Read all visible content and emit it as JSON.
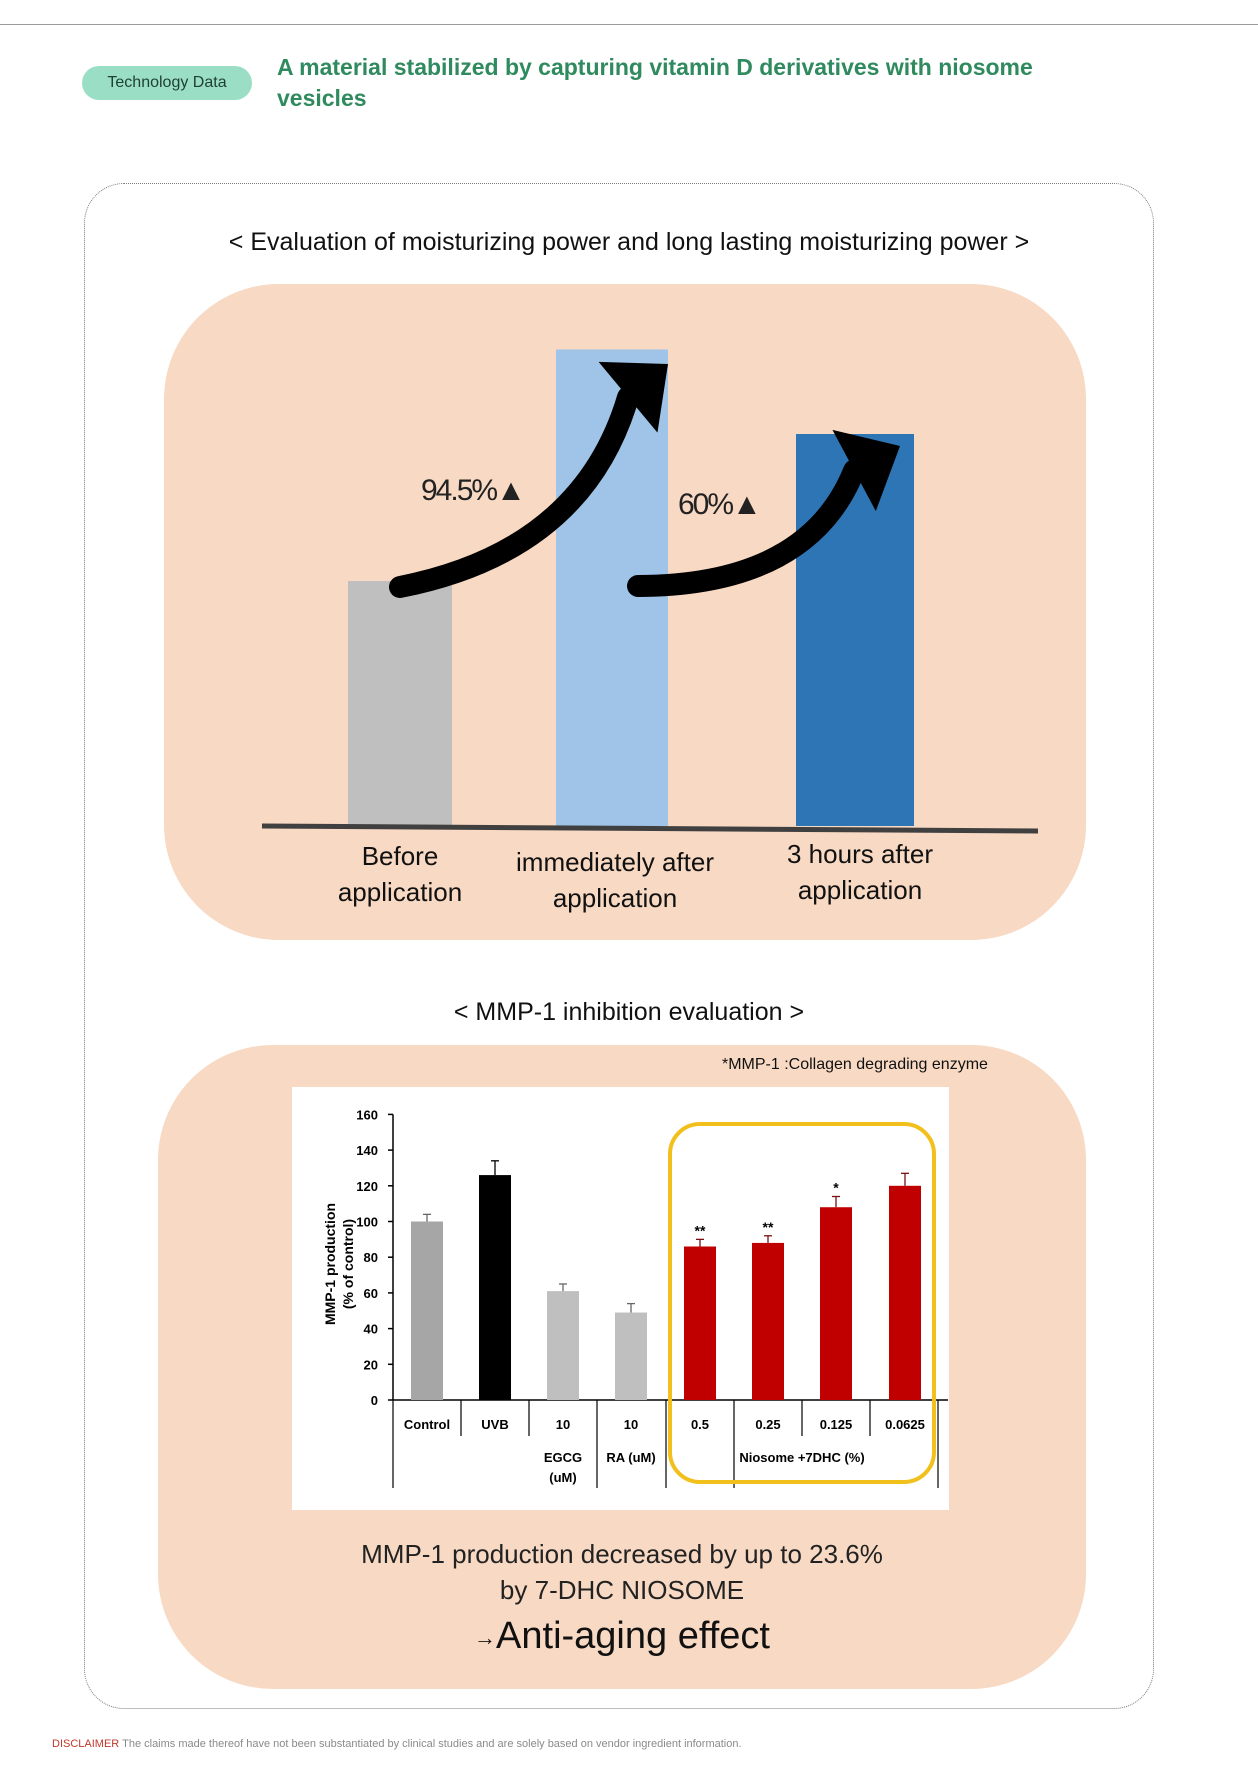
{
  "header": {
    "badge": "Technology Data",
    "title": "A material stabilized by capturing vitamin D derivatives with niosome vesicles"
  },
  "section1": {
    "title": "< Evaluation of moisturizing power and long lasting moisturizing power >",
    "annotations": [
      "94.5%▲",
      "60%▲"
    ]
  },
  "section2": {
    "title": "< MMP-1 inhibition evaluation >",
    "footnote": "*MMP-1 :Collagen degrading enzyme",
    "conclusion_line1": "MMP-1 production decreased by up to 23.6%",
    "conclusion_line2": "by 7-DHC NIOSOME",
    "conclusion_arrow": "→",
    "conclusion_line3": "Anti-aging effect"
  },
  "chart_data": [
    {
      "type": "bar",
      "title": "< Evaluation of moisturizing power and long lasting moisturizing power >",
      "categories": [
        "Before application",
        "immediately after application",
        "3 hours after application"
      ],
      "values": [
        1.0,
        1.945,
        1.6
      ],
      "colors": [
        "#bfbfbf",
        "#9fc4e7",
        "#2e75b6"
      ],
      "annotations": [
        "94.5%▲",
        "60%▲"
      ],
      "axes_visible": false,
      "grid": false
    },
    {
      "type": "bar",
      "title": "",
      "ylabel": "MMP-1 production (% of control)",
      "ylim": [
        0,
        160
      ],
      "yticks": [
        0,
        20,
        40,
        60,
        80,
        100,
        120,
        140,
        160
      ],
      "categories": [
        "Control",
        "UVB",
        "10",
        "10",
        "0.5",
        "0.25",
        "0.125",
        "0.0625"
      ],
      "group_labels": [
        "EGCG (uM)",
        "RA (uM)",
        "Niosome +7DHC (%)"
      ],
      "values": [
        100,
        126,
        61,
        49,
        86,
        88,
        108,
        120
      ],
      "errors": [
        4,
        8,
        4,
        5,
        4,
        4,
        6,
        7
      ],
      "significance": [
        "",
        "",
        "",
        "",
        "**",
        "**",
        "*",
        ""
      ],
      "colors": [
        "#a6a6a6",
        "#000000",
        "#bfbfbf",
        "#bfbfbf",
        "#c00000",
        "#c00000",
        "#c00000",
        "#c00000"
      ],
      "highlight_color": "#f2c01d",
      "grid": false
    }
  ],
  "disclaimer": {
    "label": "DISCLAIMER",
    "text": "The claims made thereof have not been substantiated by clinical studies and are solely based on vendor ingredient information."
  }
}
